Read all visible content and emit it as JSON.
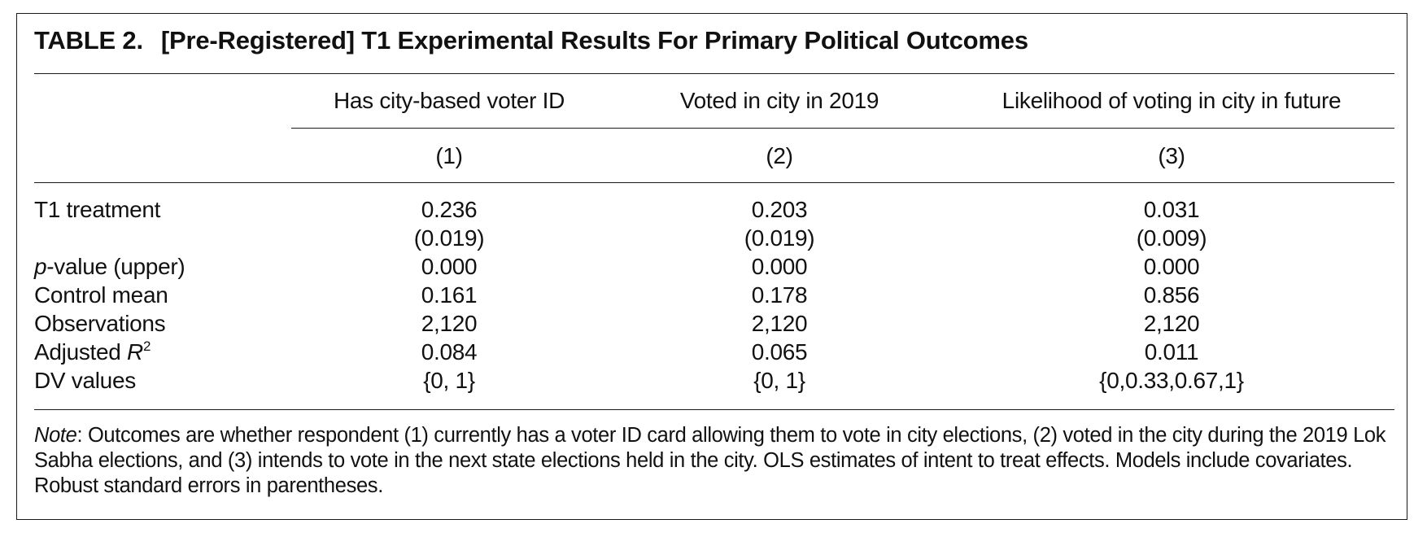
{
  "table": {
    "label": "TABLE 2.",
    "title": "[Pre-Registered] T1 Experimental Results For Primary Political Outcomes",
    "columns": [
      {
        "header": "Has city-based voter ID",
        "number": "(1)"
      },
      {
        "header": "Voted in city in 2019",
        "number": "(2)"
      },
      {
        "header": "Likelihood of voting in city in future",
        "number": "(3)"
      }
    ],
    "rows": {
      "t1": {
        "label": "T1 treatment",
        "values": [
          "0.236",
          "0.203",
          "0.031"
        ],
        "se": [
          "(0.019)",
          "(0.019)",
          "(0.009)"
        ]
      },
      "pvalue": {
        "label_italic": "p",
        "label_rest": "-value (upper)",
        "values": [
          "0.000",
          "0.000",
          "0.000"
        ]
      },
      "control": {
        "label": "Control mean",
        "values": [
          "0.161",
          "0.178",
          "0.856"
        ]
      },
      "obs": {
        "label": "Observations",
        "values": [
          "2,120",
          "2,120",
          "2,120"
        ]
      },
      "r2": {
        "label_pre": "Adjusted ",
        "label_italic": "R",
        "label_sup": "2",
        "values": [
          "0.084",
          "0.065",
          "0.011"
        ]
      },
      "dv": {
        "label": "DV values",
        "values": [
          "{0, 1}",
          "{0, 1}",
          "{0,0.33,0.67,1}"
        ]
      }
    },
    "note": {
      "lead": "Note",
      "text": ": Outcomes are whether respondent (1) currently has a voter ID card allowing them to vote in city elections, (2) voted in the city during the 2019 Lok Sabha elections, and (3) intends to vote in the next state elections held in the city. OLS estimates of intent to treat effects. Models include covariates. Robust standard errors in parentheses."
    }
  }
}
